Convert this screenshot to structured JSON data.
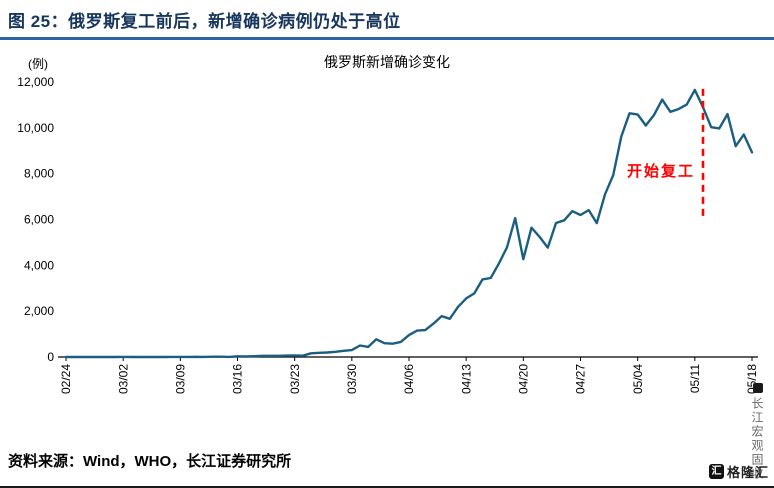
{
  "header": {
    "title": "图 25：俄罗斯复工前后，新增确诊病例仍处于高位"
  },
  "chart_data": {
    "type": "line",
    "title": "俄罗斯新增确诊变化",
    "unit_label": "(例)",
    "ylim": [
      0,
      12000
    ],
    "ytick_interval": 2000,
    "yticks": [
      "0",
      "2,000",
      "4,000",
      "6,000",
      "8,000",
      "10,000",
      "12,000"
    ],
    "xticks": [
      "02/24",
      "03/02",
      "03/09",
      "03/16",
      "03/23",
      "03/30",
      "04/06",
      "04/13",
      "04/20",
      "04/27",
      "05/04",
      "05/11",
      "05/18"
    ],
    "xtick_step": 7,
    "grid": false,
    "legend": "none",
    "line_color": "#1b5e82",
    "series": [
      {
        "name": "俄罗斯新增确诊",
        "values": [
          0,
          0,
          0,
          0,
          0,
          0,
          0,
          3,
          0,
          0,
          1,
          6,
          0,
          3,
          3,
          3,
          8,
          6,
          11,
          14,
          4,
          30,
          21,
          33,
          52,
          54,
          53,
          61,
          71,
          57,
          163,
          182,
          196,
          228,
          270,
          302,
          501,
          440,
          771,
          601,
          582,
          658,
          954,
          1154,
          1175,
          1459,
          1786,
          1667,
          2186,
          2558,
          2774,
          3388,
          3448,
          4070,
          4785,
          6060,
          4268,
          5642,
          5236,
          4774,
          5849,
          5966,
          6361,
          6198,
          6411,
          5841,
          7099,
          7933,
          9623,
          10633,
          10581,
          10102,
          10559,
          11231,
          10699,
          10817,
          11012,
          11656,
          10899,
          10028,
          9974,
          10598,
          9200,
          9709,
          8926
        ]
      }
    ],
    "annotation": {
      "label": "开始复工",
      "color": "#ff0000",
      "x_index": 78,
      "y_top": 11700,
      "y_bottom": 6100,
      "label_y": 7900
    }
  },
  "footer": {
    "source": "资料来源：Wind，WHO，长江证券研究所"
  },
  "watermark": {
    "vertical": "长江宏观固收",
    "logo_icon_char": "汇",
    "logo_text": "格隆汇"
  }
}
